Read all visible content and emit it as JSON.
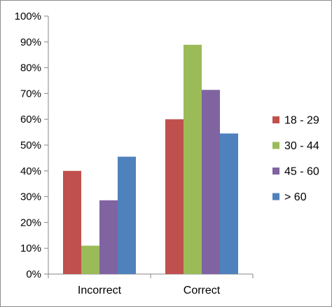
{
  "chart_data": {
    "type": "bar",
    "title": "",
    "xlabel": "",
    "ylabel": "",
    "categories": [
      "Incorrect",
      "Correct"
    ],
    "series": [
      {
        "name": "18 - 29",
        "color": "#c0504d",
        "values": [
          40,
          60
        ]
      },
      {
        "name": "30 - 44",
        "color": "#9bbb59",
        "values": [
          11,
          88.9
        ]
      },
      {
        "name": "45 - 60",
        "color": "#8064a2",
        "values": [
          28.6,
          71.4
        ]
      },
      {
        "name": "> 60",
        "color": "#4f81bd",
        "values": [
          45.5,
          54.5
        ]
      }
    ],
    "ylim": [
      0,
      100
    ],
    "y_ticks": [
      "0%",
      "10%",
      "20%",
      "30%",
      "40%",
      "50%",
      "60%",
      "70%",
      "80%",
      "90%",
      "100%"
    ],
    "grid": false,
    "legend_position": "right"
  }
}
